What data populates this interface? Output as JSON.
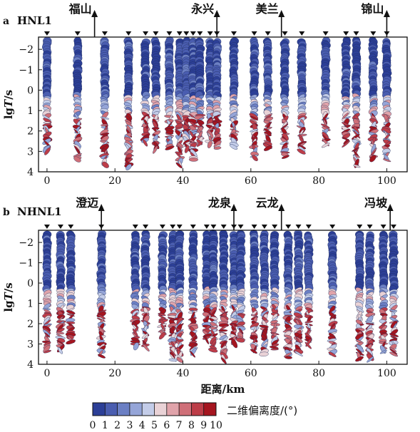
{
  "chart_data": [
    {
      "type": "scatter",
      "panel_letter": "a",
      "profile": "HNL1",
      "ylabel_parts": [
        "lg",
        "T",
        "/s"
      ],
      "xlim": [
        -2.5,
        106
      ],
      "ylim": [
        -2.6,
        4
      ],
      "y_inverted": true,
      "x_ticks": [
        0,
        20,
        40,
        60,
        80,
        100
      ],
      "y_ticks": [
        -2,
        -1,
        0,
        1,
        2,
        3,
        4
      ],
      "stations_km": [
        0,
        9,
        17,
        24,
        29,
        32,
        36,
        39,
        41,
        43,
        45,
        48,
        50,
        55,
        61,
        65,
        70,
        75,
        82,
        88,
        91,
        96,
        100
      ],
      "places": [
        {
          "name": "福山",
          "km": 14
        },
        {
          "name": "永兴",
          "km": 50
        },
        {
          "name": "美兰",
          "km": 69
        },
        {
          "name": "锦山",
          "km": 100
        }
      ]
    },
    {
      "type": "scatter",
      "panel_letter": "b",
      "profile": "NHNL1",
      "ylabel_parts": [
        "lg",
        "T",
        "/s"
      ],
      "xlabel": "距离/km",
      "xlim": [
        -2.5,
        106
      ],
      "ylim": [
        -2.6,
        4
      ],
      "y_inverted": true,
      "x_ticks": [
        0,
        20,
        40,
        60,
        80,
        100
      ],
      "y_ticks": [
        -2,
        -1,
        0,
        1,
        2,
        3,
        4
      ],
      "stations_km": [
        0,
        4,
        7,
        16,
        26,
        29,
        34,
        37,
        39,
        43,
        47,
        49,
        52,
        55,
        57,
        61,
        64,
        67,
        71,
        74,
        77,
        84,
        92,
        95,
        99,
        102
      ],
      "places": [
        {
          "name": "澄迈",
          "km": 16
        },
        {
          "name": "龙泉",
          "km": 55
        },
        {
          "name": "云龙",
          "km": 69
        },
        {
          "name": "冯坡",
          "km": 101
        }
      ]
    }
  ],
  "colorbar": {
    "title": "二维偏离度/(°)",
    "ticks": [
      0,
      1,
      2,
      3,
      4,
      5,
      6,
      7,
      8,
      9,
      10
    ],
    "colors": [
      "#2c3f97",
      "#4a5db0",
      "#6b7fc4",
      "#95a5d8",
      "#c3cce8",
      "#e9d2d6",
      "#e0a3aa",
      "#cf6f78",
      "#bd3d48",
      "#a5151f"
    ]
  }
}
